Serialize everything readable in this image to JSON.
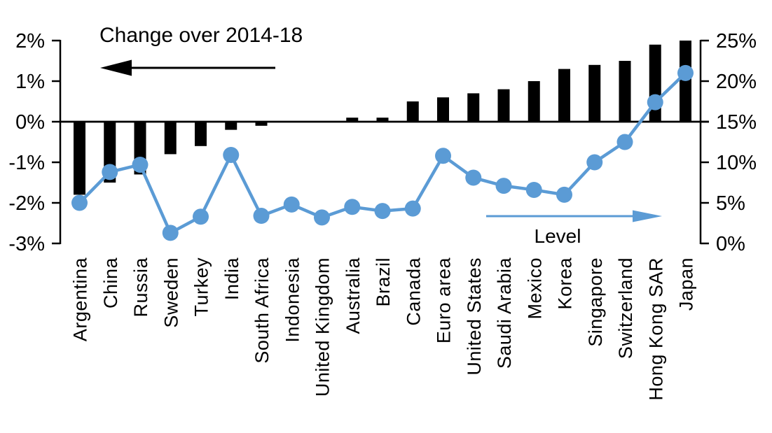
{
  "page": {
    "background": "#ffffff",
    "text_color": "#000000"
  },
  "chart_data": {
    "type": "combo-bar-line",
    "title": "Change over 2014-18",
    "categories": [
      "Argentina",
      "China",
      "Russia",
      "Sweden",
      "Turkey",
      "India",
      "South Africa",
      "Indonesia",
      "United Kingdom",
      "Australia",
      "Brazil",
      "Canada",
      "Euro area",
      "United States",
      "Saudi Arabia",
      "Mexico",
      "Korea",
      "Singapore",
      "Switzerland",
      "Hong Kong SAR",
      "Japan"
    ],
    "series": [
      {
        "name": "Change over 2014-18",
        "type": "bar",
        "axis": "left",
        "color": "#000000",
        "values": [
          -1.8,
          -1.5,
          -1.3,
          -0.8,
          -0.6,
          -0.2,
          -0.1,
          0.0,
          0.0,
          0.1,
          0.1,
          0.5,
          0.6,
          0.7,
          0.8,
          1.0,
          1.3,
          1.4,
          1.5,
          1.9,
          2.0
        ]
      },
      {
        "name": "Level",
        "type": "line",
        "axis": "right",
        "color": "#5b9bd5",
        "values": [
          5.0,
          8.8,
          9.7,
          1.3,
          3.3,
          10.9,
          3.4,
          4.8,
          3.2,
          4.5,
          4.0,
          4.3,
          10.8,
          8.1,
          7.1,
          6.6,
          6.0,
          10.0,
          12.5,
          17.4,
          21.0
        ]
      }
    ],
    "left_axis": {
      "min": -3,
      "max": 2,
      "step": 1,
      "tick_labels": [
        "2%",
        "1%",
        "0%",
        "-1%",
        "-2%",
        "-3%"
      ],
      "tick_values": [
        2,
        1,
        0,
        -1,
        -2,
        -3
      ]
    },
    "right_axis": {
      "min": 0,
      "max": 25,
      "step": 5,
      "tick_labels": [
        "25%",
        "20%",
        "15%",
        "10%",
        "5%",
        "0%"
      ],
      "tick_values": [
        25,
        20,
        15,
        10,
        5,
        0
      ]
    },
    "annotations": {
      "change_label": "Change over 2014-18",
      "change_arrow_direction": "left",
      "level_label": "Level",
      "level_arrow_direction": "right"
    },
    "grid": "off",
    "legend_position": "in-plot-arrow-annotations"
  }
}
